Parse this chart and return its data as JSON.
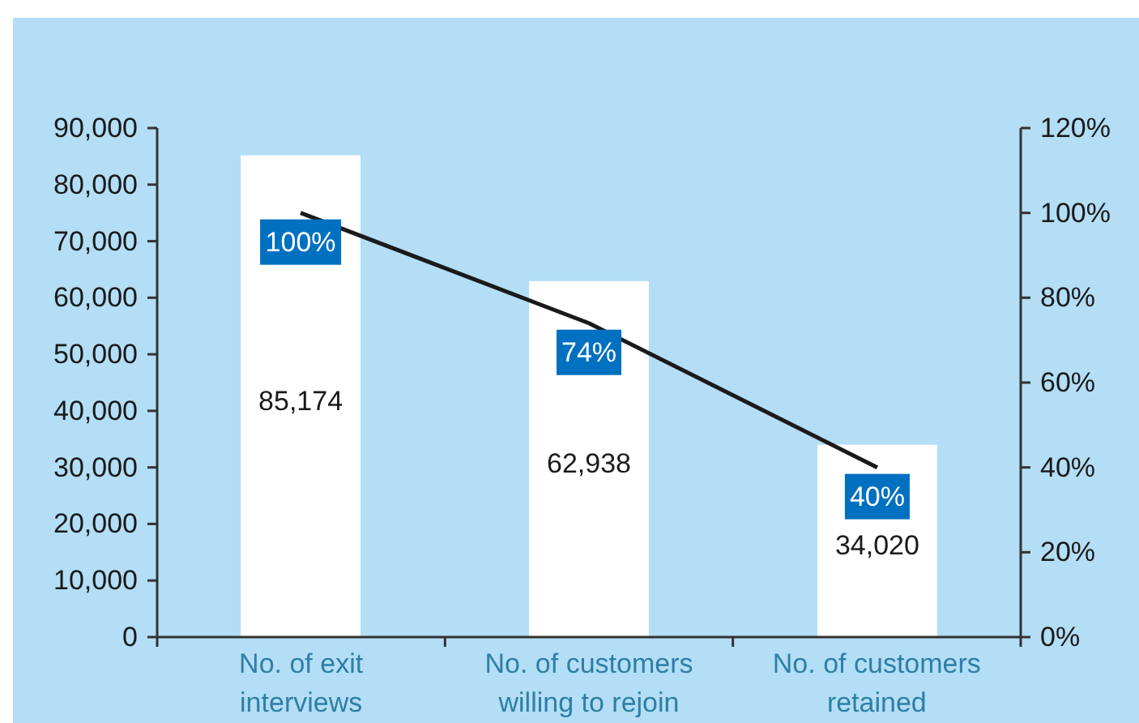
{
  "chart_data": {
    "type": "bar",
    "categories": [
      "No. of exit interviews",
      "No. of customers willing to rejoin",
      "No. of customers retained"
    ],
    "series": [
      {
        "color": "#ffffff",
        "values": [
          85174,
          62938,
          34020
        ],
        "value_labels": [
          "85,174",
          "62,938",
          "34,020"
        ]
      },
      {
        "type": "line",
        "axis": "y2",
        "color": "#1a1a1a",
        "values": [
          100,
          74,
          40
        ],
        "value_labels": [
          "100%",
          "74%",
          "40%"
        ]
      }
    ],
    "ylim": [
      0,
      90000
    ],
    "yticks": [
      0,
      {
        "value": 10000,
        "label": "10,000"
      },
      {
        "value": 20000,
        "label": "20,000"
      },
      {
        "value": 30000,
        "label": "30,000"
      },
      {
        "value": 40000,
        "label": "40,000"
      },
      {
        "value": 50000,
        "label": "50,000"
      },
      {
        "value": 60000,
        "label": "60,000"
      },
      {
        "value": 70000,
        "label": "70,000"
      },
      {
        "value": 80000,
        "label": "80,000"
      },
      {
        "value": 90000,
        "label": "90,000"
      }
    ],
    "y2lim": [
      0,
      120
    ],
    "y2ticks": [
      {
        "value": 0,
        "label": "0%"
      },
      {
        "value": 20,
        "label": "20%"
      },
      {
        "value": 40,
        "label": "40%"
      },
      {
        "value": 60,
        "label": "60%"
      },
      {
        "value": 80,
        "label": "80%"
      },
      {
        "value": 100,
        "label": "100%"
      },
      {
        "value": 120,
        "label": "120%"
      }
    ],
    "grid": false
  }
}
